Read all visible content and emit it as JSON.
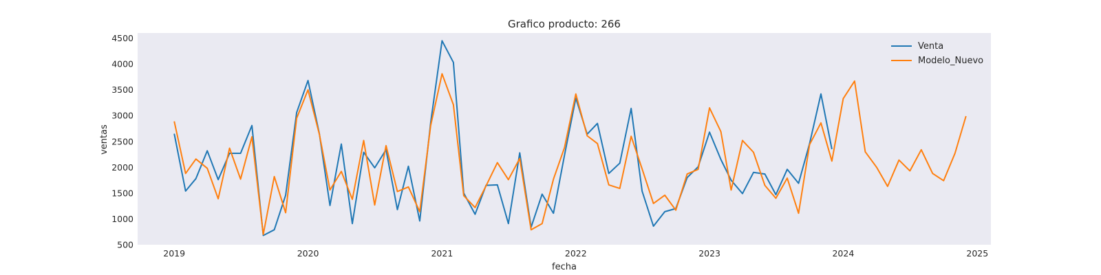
{
  "chart_data": {
    "type": "line",
    "title": "Grafico producto: 266",
    "xlabel": "fecha",
    "ylabel": "ventas",
    "xlim": [
      "2018-09-23",
      "2025-02-07"
    ],
    "ylim": [
      500,
      4600
    ],
    "x_ticks": [
      "2019",
      "2020",
      "2021",
      "2022",
      "2023",
      "2024",
      "2025"
    ],
    "y_ticks": [
      500,
      1000,
      1500,
      2000,
      2500,
      3000,
      3500,
      4000,
      4500
    ],
    "grid": false,
    "legend_position": "top-right",
    "series": [
      {
        "name": "Venta",
        "color": "#1f77b4",
        "x": [
          "2019-01",
          "2019-02",
          "2019-03",
          "2019-04",
          "2019-05",
          "2019-06",
          "2019-07",
          "2019-08",
          "2019-09",
          "2019-10",
          "2019-11",
          "2019-12",
          "2020-01",
          "2020-02",
          "2020-03",
          "2020-04",
          "2020-05",
          "2020-06",
          "2020-07",
          "2020-08",
          "2020-09",
          "2020-10",
          "2020-11",
          "2020-12",
          "2021-01",
          "2021-02",
          "2021-03",
          "2021-04",
          "2021-05",
          "2021-06",
          "2021-07",
          "2021-08",
          "2021-09",
          "2021-10",
          "2021-11",
          "2021-12",
          "2022-01",
          "2022-02",
          "2022-03",
          "2022-04",
          "2022-05",
          "2022-06",
          "2022-07",
          "2022-08",
          "2022-09",
          "2022-10",
          "2022-11",
          "2022-12",
          "2023-01",
          "2023-02",
          "2023-03",
          "2023-04",
          "2023-05",
          "2023-06",
          "2023-07",
          "2023-08",
          "2023-09",
          "2023-10",
          "2023-11",
          "2023-12"
        ],
        "values": [
          2650,
          1540,
          1780,
          2320,
          1760,
          2270,
          2270,
          2810,
          680,
          790,
          1460,
          3060,
          3680,
          2650,
          1260,
          2450,
          910,
          2290,
          1990,
          2340,
          1180,
          2020,
          960,
          2870,
          4450,
          4030,
          1500,
          1090,
          1650,
          1660,
          910,
          2280,
          840,
          1480,
          1110,
          2230,
          3340,
          2640,
          2850,
          1880,
          2080,
          3140,
          1540,
          860,
          1140,
          1200,
          1800,
          2010,
          2680,
          2150,
          1750,
          1490,
          1900,
          1870,
          1470,
          1960,
          1690,
          2460,
          3420,
          2350
        ]
      },
      {
        "name": "Modelo_Nuevo",
        "color": "#ff7f0e",
        "x": [
          "2019-01",
          "2019-02",
          "2019-03",
          "2019-04",
          "2019-05",
          "2019-06",
          "2019-07",
          "2019-08",
          "2019-09",
          "2019-10",
          "2019-11",
          "2019-12",
          "2020-01",
          "2020-02",
          "2020-03",
          "2020-04",
          "2020-05",
          "2020-06",
          "2020-07",
          "2020-08",
          "2020-09",
          "2020-10",
          "2020-11",
          "2020-12",
          "2021-01",
          "2021-02",
          "2021-03",
          "2021-04",
          "2021-05",
          "2021-06",
          "2021-07",
          "2021-08",
          "2021-09",
          "2021-10",
          "2021-11",
          "2021-12",
          "2022-01",
          "2022-02",
          "2022-03",
          "2022-04",
          "2022-05",
          "2022-06",
          "2022-07",
          "2022-08",
          "2022-09",
          "2022-10",
          "2022-11",
          "2022-12",
          "2023-01",
          "2023-02",
          "2023-03",
          "2023-04",
          "2023-05",
          "2023-06",
          "2023-07",
          "2023-08",
          "2023-09",
          "2023-10",
          "2023-11",
          "2023-12",
          "2024-01",
          "2024-02",
          "2024-03",
          "2024-04",
          "2024-05",
          "2024-06",
          "2024-07",
          "2024-08",
          "2024-09",
          "2024-10",
          "2024-11",
          "2024-12"
        ],
        "values": [
          2890,
          1880,
          2160,
          1980,
          1390,
          2370,
          1770,
          2590,
          700,
          1820,
          1120,
          2950,
          3500,
          2640,
          1560,
          1920,
          1380,
          2520,
          1270,
          2420,
          1530,
          1620,
          1140,
          2810,
          3810,
          3210,
          1450,
          1220,
          1640,
          2090,
          1760,
          2170,
          790,
          910,
          1770,
          2380,
          3420,
          2610,
          2460,
          1660,
          1590,
          2600,
          1970,
          1300,
          1460,
          1170,
          1870,
          1960,
          3150,
          2690,
          1560,
          2520,
          2290,
          1650,
          1400,
          1790,
          1110,
          2440,
          2860,
          2120,
          3330,
          3670,
          2300,
          2000,
          1630,
          2140,
          1930,
          2340,
          1880,
          1740,
          2270,
          2990
        ]
      }
    ]
  }
}
